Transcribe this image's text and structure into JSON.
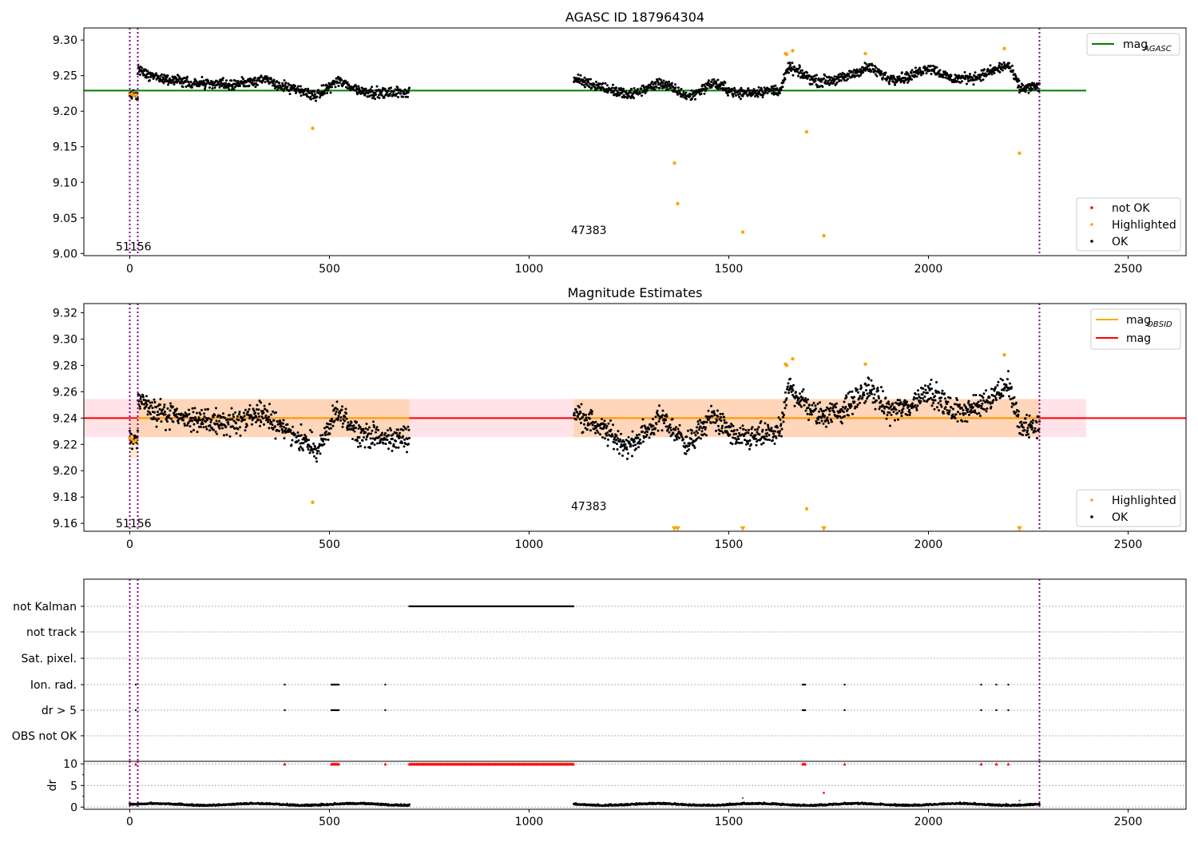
{
  "chart_data": [
    {
      "type": "scatter",
      "title": "AGASC ID 187964304",
      "xlim": [
        -115,
        2645
      ],
      "ylim": [
        8.997,
        9.317
      ],
      "xticks": [
        "0",
        "500",
        "1000",
        "1500",
        "2000",
        "2500"
      ],
      "yticks": [
        "9.00",
        "9.05",
        "9.10",
        "9.15",
        "9.20",
        "9.25",
        "9.30"
      ],
      "grid": false,
      "legends": [
        {
          "placement": "upper right",
          "entries": [
            {
              "label": "mag",
              "sub": "AGASC",
              "color": "#008000",
              "kind": "line"
            }
          ]
        },
        {
          "placement": "lower right",
          "entries": [
            {
              "label": "not OK",
              "color": "#ff0000",
              "kind": "dot"
            },
            {
              "label": "Highlighted",
              "color": "#ffa500",
              "kind": "dot"
            },
            {
              "label": "OK",
              "color": "#000000",
              "kind": "dot"
            }
          ]
        }
      ],
      "annotations": [
        {
          "text": "51156",
          "x": -35,
          "y": 9.01
        },
        {
          "text": "47383",
          "x": 1105,
          "y": 9.033
        }
      ],
      "hline": {
        "value": 9.229,
        "xmin": -115,
        "xmax": 2395,
        "color": "#008000"
      },
      "vlines": {
        "values": [
          0,
          20,
          2278
        ],
        "color": "#800080",
        "style": "dotted"
      },
      "series": [
        {
          "name": "OK",
          "color": "#000000",
          "segments": [
            {
              "x0": 0,
              "x1": 20,
              "x": [
                0,
                20
              ],
              "y": [
                9.222,
                9.222
              ]
            },
            {
              "x0": 20,
              "x1": 700,
              "x": [
                20,
                60,
                150,
                250,
                330,
                400,
                470,
                520,
                580,
                640,
                700
              ],
              "y": [
                9.258,
                9.248,
                9.24,
                9.237,
                9.245,
                9.232,
                9.222,
                9.243,
                9.228,
                9.225,
                9.228
              ]
            },
            {
              "x0": 1112,
              "x1": 2278,
              "x": [
                1112,
                1160,
                1250,
                1330,
                1400,
                1460,
                1520,
                1580,
                1630,
                1650,
                1720,
                1780,
                1850,
                1900,
                1950,
                2000,
                2060,
                2120,
                2200,
                2230,
                2278
              ],
              "y": [
                9.245,
                9.238,
                9.222,
                9.24,
                9.22,
                9.24,
                9.225,
                9.228,
                9.23,
                9.262,
                9.242,
                9.245,
                9.262,
                9.246,
                9.248,
                9.262,
                9.245,
                9.248,
                9.265,
                9.232,
                9.235
              ]
            }
          ]
        },
        {
          "name": "Highlighted",
          "color": "#ffa500",
          "x": [
            0,
            5,
            10,
            15,
            458,
            1364,
            1372,
            1535,
            1642,
            1645,
            1660,
            1695,
            1738,
            1842,
            2190,
            2228
          ],
          "y": [
            9.225,
            9.224,
            9.222,
            9.223,
            9.176,
            9.127,
            9.07,
            9.03,
            9.281,
            9.28,
            9.285,
            9.171,
            9.025,
            9.281,
            9.288,
            9.141
          ]
        }
      ]
    },
    {
      "type": "scatter",
      "title": "Magnitude Estimates",
      "xlim": [
        -115,
        2645
      ],
      "ylim": [
        9.154,
        9.327
      ],
      "xticks": [
        "0",
        "500",
        "1000",
        "1500",
        "2000",
        "2500"
      ],
      "yticks": [
        "9.16",
        "9.18",
        "9.20",
        "9.22",
        "9.24",
        "9.26",
        "9.28",
        "9.30",
        "9.32"
      ],
      "grid": false,
      "legends": [
        {
          "placement": "upper right",
          "entries": [
            {
              "label": "mag",
              "sub": "OBSID",
              "color": "#ffa500",
              "kind": "line"
            },
            {
              "label": "mag",
              "sub": "",
              "color": "#ff0000",
              "kind": "line"
            }
          ]
        },
        {
          "placement": "lower right",
          "entries": [
            {
              "label": "Highlighted",
              "color": "#ffa500",
              "kind": "dot"
            },
            {
              "label": "OK",
              "color": "#000000",
              "kind": "dot"
            }
          ]
        }
      ],
      "annotations": [
        {
          "text": "51156",
          "x": -35,
          "y": 9.16
        },
        {
          "text": "47383",
          "x": 1105,
          "y": 9.173
        }
      ],
      "mag_line": {
        "value": 9.24,
        "color": "#ff0000"
      },
      "band": {
        "low": 9.2255,
        "high": 9.2545,
        "xmin": -115,
        "xmax": 2395
      },
      "obsid_mag": [
        {
          "x0": 0,
          "x1": 20,
          "value": 9.224
        },
        {
          "x0": 20,
          "x1": 700,
          "value": 9.24
        },
        {
          "x0": 1112,
          "x1": 2278,
          "value": 9.24
        }
      ],
      "vlines": {
        "values": [
          0,
          20,
          2278
        ],
        "color": "#800080",
        "style": "dotted"
      },
      "series": [
        {
          "name": "OK",
          "color": "#000000",
          "segments": [
            {
              "x0": 0,
              "x1": 20,
              "x": [
                0,
                20
              ],
              "y": [
                9.224,
                9.222
              ]
            },
            {
              "x0": 20,
              "x1": 700,
              "x": [
                20,
                60,
                150,
                250,
                330,
                400,
                470,
                520,
                580,
                640,
                700
              ],
              "y": [
                9.256,
                9.245,
                9.238,
                9.236,
                9.243,
                9.23,
                9.215,
                9.244,
                9.228,
                9.224,
                9.226
              ]
            },
            {
              "x0": 1112,
              "x1": 2278,
              "x": [
                1112,
                1160,
                1250,
                1330,
                1400,
                1460,
                1520,
                1580,
                1630,
                1650,
                1720,
                1780,
                1850,
                1900,
                1950,
                2000,
                2060,
                2120,
                2200,
                2230,
                2278
              ],
              "y": [
                9.245,
                9.236,
                9.218,
                9.24,
                9.22,
                9.242,
                9.224,
                9.226,
                9.23,
                9.264,
                9.242,
                9.245,
                9.262,
                9.246,
                9.248,
                9.262,
                9.245,
                9.248,
                9.266,
                9.232,
                9.234
              ]
            }
          ]
        },
        {
          "name": "Highlighted",
          "color": "#ffa500",
          "x": [
            0,
            5,
            10,
            15,
            458,
            1642,
            1645,
            1660,
            1695,
            1842,
            2190
          ],
          "y": [
            9.225,
            9.224,
            9.222,
            9.223,
            9.176,
            9.281,
            9.28,
            9.285,
            9.171,
            9.281,
            9.288
          ]
        },
        {
          "name": "Highlighted (off scale)",
          "color": "#ffa500",
          "marker": "triangle-down",
          "x": [
            1364,
            1372,
            1535,
            1738,
            2228
          ],
          "y": [
            9.156,
            9.156,
            9.156,
            9.156,
            9.156
          ]
        }
      ]
    },
    {
      "type": "scatter",
      "title": "",
      "xlim": [
        -115,
        2645
      ],
      "xticks": [
        "0",
        "500",
        "1000",
        "1500",
        "2000",
        "2500"
      ],
      "flag_rows": [
        "not Kalman",
        "not track",
        "Sat. pixel.",
        "Ion. rad.",
        "dr > 5",
        "OBS not OK"
      ],
      "flags": {
        "not Kalman": [
          [
            700,
            1112
          ]
        ],
        "not track": [],
        "Sat. pixel.": [],
        "Ion. rad.": [
          [
            15,
            15
          ],
          [
            388,
            388
          ],
          [
            505,
            525
          ],
          [
            640,
            640
          ],
          [
            1685,
            1692
          ],
          [
            1790,
            1790
          ],
          [
            2132,
            2132
          ],
          [
            2170,
            2170
          ],
          [
            2200,
            2200
          ]
        ],
        "dr > 5": [
          [
            15,
            15
          ],
          [
            388,
            388
          ],
          [
            505,
            525
          ],
          [
            640,
            640
          ],
          [
            1685,
            1692
          ],
          [
            1790,
            1790
          ],
          [
            2132,
            2132
          ],
          [
            2170,
            2170
          ],
          [
            2200,
            2200
          ]
        ],
        "OBS not OK": []
      },
      "dr_panel": {
        "ylabel": "dr",
        "yticks": [
          "0",
          "5",
          "10"
        ],
        "ylim": [
          -0.5,
          10.6
        ],
        "clip_value": 10,
        "clipped_x": [
          [
            15,
            15
          ],
          [
            388,
            388
          ],
          [
            505,
            525
          ],
          [
            640,
            640
          ],
          [
            700,
            1112
          ],
          [
            1685,
            1692
          ],
          [
            1790,
            1790
          ],
          [
            2132,
            2132
          ],
          [
            2170,
            2170
          ],
          [
            2200,
            2200
          ]
        ],
        "red_points": [
          {
            "x": 1738,
            "y": 3.3
          }
        ],
        "gray_points": [
          {
            "x": 1535,
            "y": 2.1
          },
          {
            "x": 2228,
            "y": 1.5
          }
        ],
        "ok_segments": [
          [
            0,
            700
          ],
          [
            1112,
            2278
          ]
        ],
        "ok_level": 0.5,
        "ok_color": "#000000",
        "clip_color": "#ff0000"
      },
      "vlines": {
        "values": [
          0,
          20,
          2278
        ],
        "color": "#800080",
        "style": "dotted"
      }
    }
  ]
}
